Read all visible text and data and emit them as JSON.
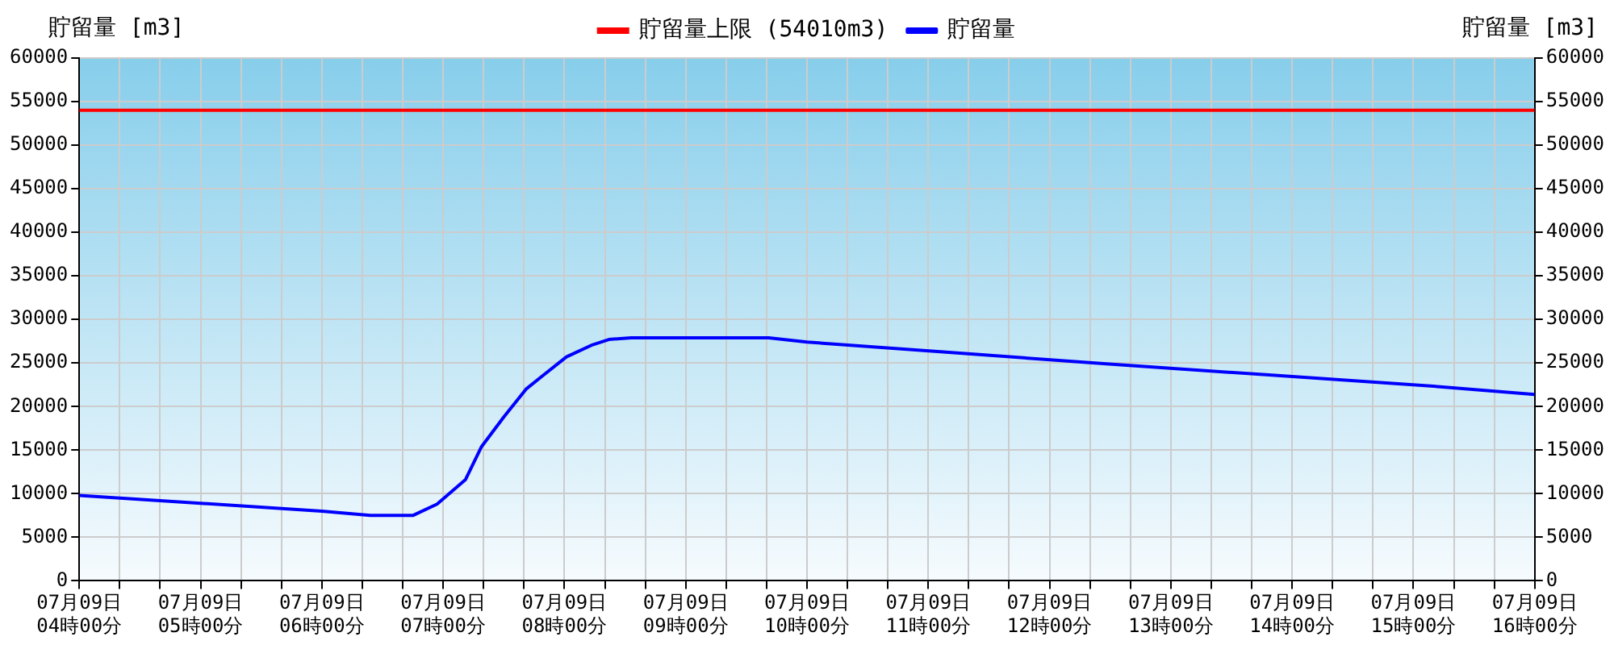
{
  "chart_data": {
    "type": "line",
    "ylabel": "貯留量 [m3]",
    "y2label": "貯留量 [m3]",
    "xlim": [
      "--07-09T04:00",
      "--07-09T16:00"
    ],
    "xticks": [
      {
        "value": "--07-09T04:00",
        "label": "07月09日\n04時00分"
      },
      {
        "value": "--07-09T04:20",
        "label": null
      },
      {
        "value": "--07-09T04:40",
        "label": null
      },
      {
        "value": "--07-09T05:00",
        "label": "07月09日\n05時00分"
      },
      {
        "value": "--07-09T05:20",
        "label": null
      },
      {
        "value": "--07-09T05:40",
        "label": null
      },
      {
        "value": "--07-09T06:00",
        "label": "07月09日\n06時00分"
      },
      {
        "value": "--07-09T06:20",
        "label": null
      },
      {
        "value": "--07-09T06:40",
        "label": null
      },
      {
        "value": "--07-09T07:00",
        "label": "07月09日\n07時00分"
      },
      {
        "value": "--07-09T07:20",
        "label": null
      },
      {
        "value": "--07-09T07:40",
        "label": null
      },
      {
        "value": "--07-09T08:00",
        "label": "07月09日\n08時00分"
      },
      {
        "value": "--07-09T08:20",
        "label": null
      },
      {
        "value": "--07-09T08:40",
        "label": null
      },
      {
        "value": "--07-09T09:00",
        "label": "07月09日\n09時00分"
      },
      {
        "value": "--07-09T09:20",
        "label": null
      },
      {
        "value": "--07-09T09:40",
        "label": null
      },
      {
        "value": "--07-09T10:00",
        "label": "07月09日\n10時00分"
      },
      {
        "value": "--07-09T10:20",
        "label": null
      },
      {
        "value": "--07-09T10:40",
        "label": null
      },
      {
        "value": "--07-09T11:00",
        "label": "07月09日\n11時00分"
      },
      {
        "value": "--07-09T11:20",
        "label": null
      },
      {
        "value": "--07-09T11:40",
        "label": null
      },
      {
        "value": "--07-09T12:00",
        "label": "07月09日\n12時00分"
      },
      {
        "value": "--07-09T12:20",
        "label": null
      },
      {
        "value": "--07-09T12:40",
        "label": null
      },
      {
        "value": "--07-09T13:00",
        "label": "07月09日\n13時00分"
      },
      {
        "value": "--07-09T13:20",
        "label": null
      },
      {
        "value": "--07-09T13:40",
        "label": null
      },
      {
        "value": "--07-09T14:00",
        "label": "07月09日\n14時00分"
      },
      {
        "value": "--07-09T14:20",
        "label": null
      },
      {
        "value": "--07-09T14:40",
        "label": null
      },
      {
        "value": "--07-09T15:00",
        "label": "07月09日\n15時00分"
      },
      {
        "value": "--07-09T15:20",
        "label": null
      },
      {
        "value": "--07-09T15:40",
        "label": null
      },
      {
        "value": "--07-09T16:00",
        "label": "07月09日\n16時00分"
      }
    ],
    "ylim": [
      0,
      60000
    ],
    "yticks": [
      0,
      5000,
      10000,
      15000,
      20000,
      25000,
      30000,
      35000,
      40000,
      45000,
      50000,
      55000,
      60000
    ],
    "y2lim": [
      0,
      60000
    ],
    "y2ticks": [
      0,
      5000,
      10000,
      15000,
      20000,
      25000,
      30000,
      35000,
      40000,
      45000,
      50000,
      55000,
      60000
    ],
    "grid": true,
    "legend": "top",
    "marker": "none",
    "line_style": "solid",
    "ref_lines": [
      {
        "axis": "y",
        "value": 54010,
        "label": "貯留量上限 (54010m3)",
        "color": "#ff0000"
      }
    ],
    "series": [
      {
        "name": "貯留量",
        "color": "#0000ff",
        "x": [
          "--07-09T04:00",
          "--07-09T05:00",
          "--07-09T06:00",
          "--07-09T06:24",
          "--07-09T06:45",
          "--07-09T06:57",
          "--07-09T07:11",
          "--07-09T07:19",
          "--07-09T07:30",
          "--07-09T07:41",
          "--07-09T07:49",
          "--07-09T08:01",
          "--07-09T08:14",
          "--07-09T08:22",
          "--07-09T08:33",
          "--07-09T09:41",
          "--07-09T10:00",
          "--07-09T11:06",
          "--07-09T12:28",
          "--07-09T13:50",
          "--07-09T15:12",
          "--07-09T16:00"
        ],
        "values": [
          9800,
          8900,
          8000,
          7500,
          7500,
          8800,
          11600,
          15400,
          18800,
          22000,
          23500,
          25700,
          27100,
          27700,
          27900,
          27900,
          27400,
          26300,
          24900,
          23600,
          22300,
          21400
        ]
      }
    ]
  }
}
